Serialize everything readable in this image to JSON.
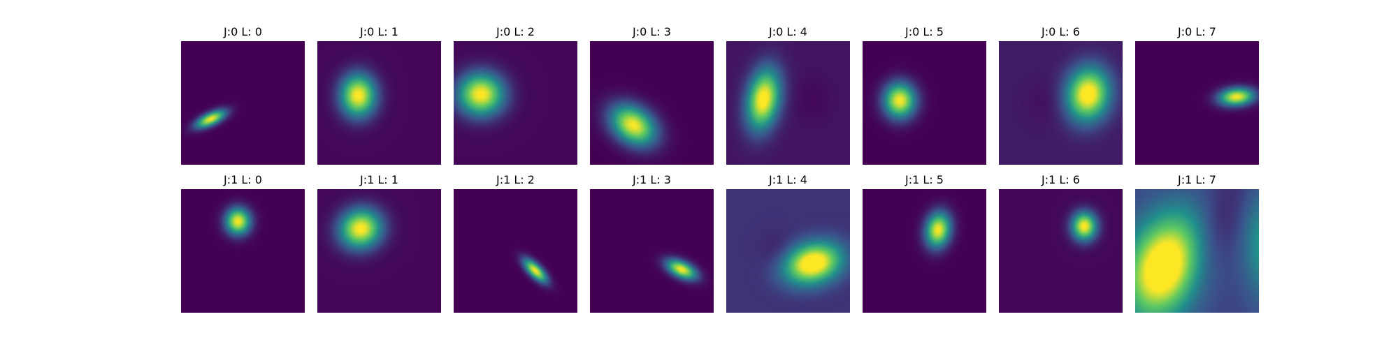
{
  "chart_data": {
    "type": "heatmap",
    "colormap": "viridis",
    "colormap_stops": [
      "#440154",
      "#3b528b",
      "#21918c",
      "#5ec962",
      "#fde725"
    ],
    "grid": false,
    "axes_visible": false,
    "rows": 2,
    "cols": 8,
    "panels": [
      {
        "title": "J:0 L: 0",
        "blobs": [
          {
            "x": 0.24,
            "y": 0.63,
            "sx": 0.09,
            "sy": 0.035,
            "angle": -25,
            "amp": 1
          }
        ],
        "bg": 0
      },
      {
        "title": "J:0 L: 1",
        "blobs": [
          {
            "x": 0.33,
            "y": 0.44,
            "sx": 0.1,
            "sy": 0.12,
            "angle": 0,
            "amp": 1
          }
        ],
        "bg": 0.02
      },
      {
        "title": "J:0 L: 2",
        "blobs": [
          {
            "x": 0.22,
            "y": 0.43,
            "sx": 0.13,
            "sy": 0.12,
            "angle": 0,
            "amp": 1
          }
        ],
        "bg": 0.02
      },
      {
        "title": "J:0 L: 3",
        "blobs": [
          {
            "x": 0.35,
            "y": 0.68,
            "sx": 0.14,
            "sy": 0.1,
            "angle": 35,
            "amp": 1
          }
        ],
        "bg": 0
      },
      {
        "title": "J:0 L: 4",
        "blobs": [
          {
            "x": 0.3,
            "y": 0.47,
            "sx": 0.09,
            "sy": 0.17,
            "angle": 10,
            "amp": 1
          },
          {
            "x": 0.7,
            "y": 0.47,
            "sx": 0.1,
            "sy": 0.12,
            "angle": 0,
            "amp": -0.04
          }
        ],
        "bg": 0.06
      },
      {
        "title": "J:0 L: 5",
        "blobs": [
          {
            "x": 0.3,
            "y": 0.48,
            "sx": 0.09,
            "sy": 0.1,
            "angle": 0,
            "amp": 1
          }
        ],
        "bg": 0
      },
      {
        "title": "J:0 L: 6",
        "blobs": [
          {
            "x": 0.72,
            "y": 0.43,
            "sx": 0.12,
            "sy": 0.15,
            "angle": 10,
            "amp": 1
          },
          {
            "x": 0.4,
            "y": 0.5,
            "sx": 0.12,
            "sy": 0.12,
            "angle": 0,
            "amp": -0.04
          }
        ],
        "bg": 0.08
      },
      {
        "title": "J:0 L: 7",
        "blobs": [
          {
            "x": 0.82,
            "y": 0.45,
            "sx": 0.1,
            "sy": 0.05,
            "angle": -5,
            "amp": 1
          }
        ],
        "bg": 0
      },
      {
        "title": "J:1 L: 0",
        "blobs": [
          {
            "x": 0.46,
            "y": 0.26,
            "sx": 0.07,
            "sy": 0.075,
            "angle": 0,
            "amp": 1
          }
        ],
        "bg": 0
      },
      {
        "title": "J:1 L: 1",
        "blobs": [
          {
            "x": 0.35,
            "y": 0.32,
            "sx": 0.12,
            "sy": 0.11,
            "angle": -20,
            "amp": 1
          }
        ],
        "bg": 0.02
      },
      {
        "title": "J:1 L: 2",
        "blobs": [
          {
            "x": 0.66,
            "y": 0.66,
            "sx": 0.085,
            "sy": 0.035,
            "angle": 45,
            "amp": 1
          }
        ],
        "bg": 0
      },
      {
        "title": "J:1 L: 3",
        "blobs": [
          {
            "x": 0.74,
            "y": 0.65,
            "sx": 0.09,
            "sy": 0.045,
            "angle": 25,
            "amp": 1
          }
        ],
        "bg": 0
      },
      {
        "title": "J:1 L: 4",
        "blobs": [
          {
            "x": 0.7,
            "y": 0.6,
            "sx": 0.16,
            "sy": 0.11,
            "angle": -15,
            "amp": 1
          },
          {
            "x": 0.42,
            "y": 0.5,
            "sx": 0.1,
            "sy": 0.1,
            "angle": 0,
            "amp": -0.06
          }
        ],
        "bg": 0.15
      },
      {
        "title": "J:1 L: 5",
        "blobs": [
          {
            "x": 0.61,
            "y": 0.33,
            "sx": 0.07,
            "sy": 0.1,
            "angle": 10,
            "amp": 1
          }
        ],
        "bg": 0
      },
      {
        "title": "J:1 L: 6",
        "blobs": [
          {
            "x": 0.69,
            "y": 0.3,
            "sx": 0.07,
            "sy": 0.08,
            "angle": 0,
            "amp": 1
          }
        ],
        "bg": 0.02
      },
      {
        "title": "J:1 L: 7",
        "blobs": [
          {
            "x": 0.23,
            "y": 0.63,
            "sx": 0.2,
            "sy": 0.3,
            "angle": 20,
            "amp": 1
          },
          {
            "x": 0.65,
            "y": 0.35,
            "sx": 0.12,
            "sy": 0.35,
            "angle": 20,
            "amp": -0.12
          },
          {
            "x": 1.05,
            "y": 0.45,
            "sx": 0.12,
            "sy": 0.3,
            "angle": 0,
            "amp": 0.35
          }
        ],
        "bg": 0.2
      }
    ]
  }
}
